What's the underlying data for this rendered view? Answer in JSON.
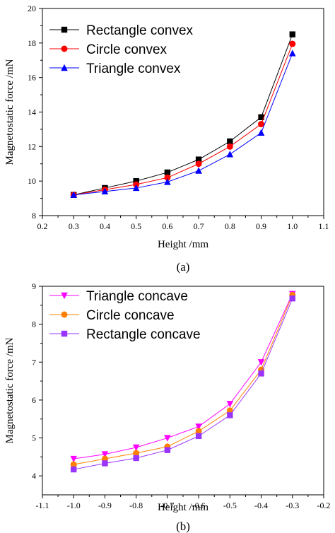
{
  "chart_data": [
    {
      "type": "line",
      "panel_label": "(a)",
      "xlabel": "Height /mm",
      "ylabel": "Magnetostatic force /mN",
      "xlim": [
        0.2,
        1.1
      ],
      "ylim": [
        8,
        20
      ],
      "xticks": [
        "0.2",
        "0.3",
        "0.4",
        "0.5",
        "0.6",
        "0.7",
        "0.8",
        "0.9",
        "1.0",
        "1.1"
      ],
      "yticks": [
        "8",
        "10",
        "12",
        "14",
        "16",
        "18",
        "20"
      ],
      "x": [
        0.3,
        0.4,
        0.5,
        0.6,
        0.7,
        0.8,
        0.9,
        1.0
      ],
      "legend_position": "top-left",
      "grid": false,
      "series": [
        {
          "name": "Rectangle convex",
          "color": "#000000",
          "marker": "square",
          "values": [
            9.2,
            9.6,
            10.0,
            10.5,
            11.25,
            12.3,
            13.7,
            18.5
          ]
        },
        {
          "name": "Circle convex",
          "color": "#ff0000",
          "marker": "circle",
          "values": [
            9.2,
            9.5,
            9.8,
            10.2,
            11.0,
            12.0,
            13.3,
            17.95
          ]
        },
        {
          "name": "Triangle convex",
          "color": "#0000ff",
          "marker": "triangle-up",
          "values": [
            9.2,
            9.4,
            9.6,
            9.95,
            10.6,
            11.55,
            12.8,
            17.4
          ]
        }
      ]
    },
    {
      "type": "line",
      "panel_label": "(b)",
      "xlabel": "Height /mm",
      "ylabel": "Magnetostatic force /mN",
      "xlim": [
        -1.1,
        -0.2
      ],
      "ylim": [
        3.5,
        9
      ],
      "xticks": [
        "-1.1",
        "-1.0",
        "-0.9",
        "-0.8",
        "-0.7",
        "-0.6",
        "-0.5",
        "-0.4",
        "-0.3",
        "-0.2"
      ],
      "yticks": [
        "4",
        "5",
        "6",
        "7",
        "8",
        "9"
      ],
      "x": [
        -1.0,
        -0.9,
        -0.8,
        -0.7,
        -0.6,
        -0.5,
        -0.4,
        -0.3
      ],
      "legend_position": "top-left",
      "grid": false,
      "series": [
        {
          "name": "Triangle concave",
          "color": "#ff00ff",
          "marker": "triangle-down",
          "values": [
            4.45,
            4.57,
            4.75,
            5.0,
            5.3,
            5.9,
            7.0,
            8.8
          ]
        },
        {
          "name": "Circle concave",
          "color": "#ff8000",
          "marker": "circle",
          "values": [
            4.3,
            4.45,
            4.6,
            4.77,
            5.18,
            5.72,
            6.8,
            8.77
          ]
        },
        {
          "name": "Rectangle concave",
          "color": "#9933ff",
          "marker": "square",
          "values": [
            4.17,
            4.33,
            4.47,
            4.68,
            5.05,
            5.6,
            6.7,
            8.68
          ]
        }
      ]
    }
  ]
}
